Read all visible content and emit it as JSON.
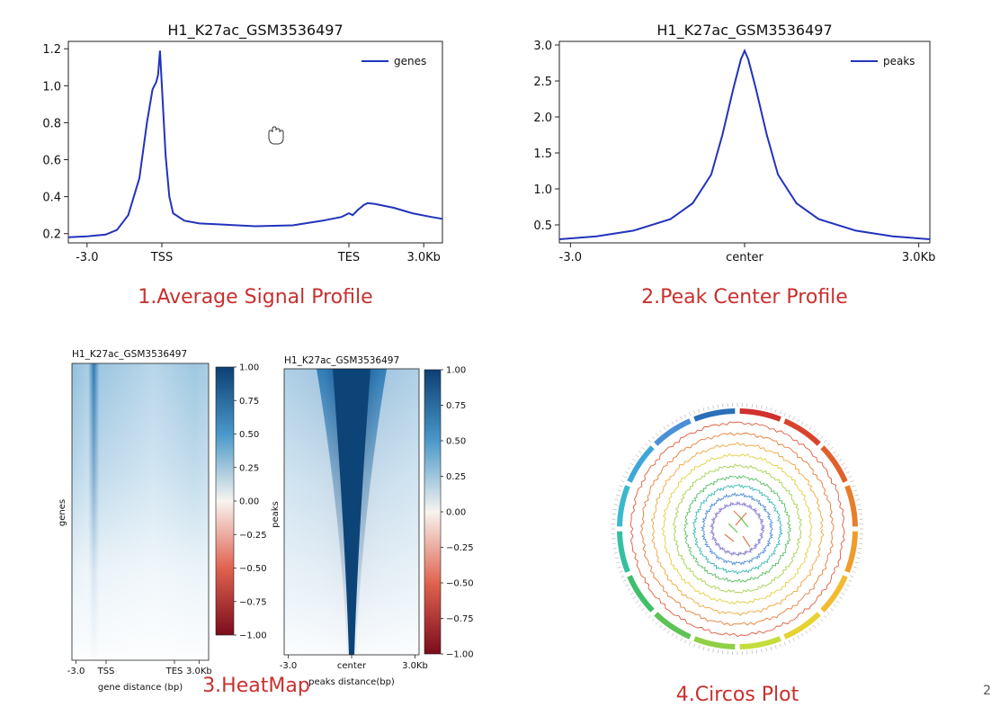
{
  "captions": {
    "c1": "1.Average Signal Profile",
    "c2": "2.Peak Center Profile",
    "c3": "3.HeatMap",
    "c4": "4.Circos Plot"
  },
  "corner_text": "2",
  "colors": {
    "line": "#2233bb",
    "caption": "#c8302e",
    "heat_high": "#0d4a80",
    "heat_low": "#ffffff",
    "heat_neg": "#8b0d1a"
  },
  "chart_data": [
    {
      "type": "line",
      "title": "H1_K27ac_GSM3536497",
      "legend": "genes",
      "legend_position": "top-right",
      "xlabel": "",
      "ylabel": "",
      "x_ticks": [
        "-3.0",
        "TSS",
        "TES",
        "3.0Kb"
      ],
      "y_ticks": [
        "0.2",
        "0.4",
        "0.6",
        "0.8",
        "1.0",
        "1.2"
      ],
      "ylim": [
        0.15,
        1.24
      ],
      "series": [
        {
          "name": "genes",
          "points": [
            [
              0,
              0.18
            ],
            [
              0.05,
              0.185
            ],
            [
              0.1,
              0.195
            ],
            [
              0.13,
              0.22
            ],
            [
              0.16,
              0.3
            ],
            [
              0.19,
              0.5
            ],
            [
              0.21,
              0.8
            ],
            [
              0.225,
              0.98
            ],
            [
              0.235,
              1.02
            ],
            [
              0.24,
              1.06
            ],
            [
              0.245,
              1.19
            ],
            [
              0.25,
              1.0
            ],
            [
              0.26,
              0.62
            ],
            [
              0.27,
              0.4
            ],
            [
              0.28,
              0.31
            ],
            [
              0.31,
              0.27
            ],
            [
              0.35,
              0.255
            ],
            [
              0.4,
              0.25
            ],
            [
              0.5,
              0.24
            ],
            [
              0.6,
              0.245
            ],
            [
              0.68,
              0.27
            ],
            [
              0.73,
              0.29
            ],
            [
              0.75,
              0.31
            ],
            [
              0.76,
              0.3
            ],
            [
              0.775,
              0.33
            ],
            [
              0.79,
              0.355
            ],
            [
              0.8,
              0.365
            ],
            [
              0.82,
              0.36
            ],
            [
              0.87,
              0.34
            ],
            [
              0.92,
              0.31
            ],
            [
              0.97,
              0.29
            ],
            [
              1.0,
              0.28
            ]
          ]
        }
      ]
    },
    {
      "type": "line",
      "title": "H1_K27ac_GSM3536497",
      "legend": "peaks",
      "legend_position": "top-right",
      "xlabel": "",
      "ylabel": "",
      "x_ticks": [
        "-3.0",
        "center",
        "3.0Kb"
      ],
      "y_ticks": [
        "0.5",
        "1.0",
        "1.5",
        "2.0",
        "2.5",
        "3.0"
      ],
      "ylim": [
        0.25,
        3.05
      ],
      "series": [
        {
          "name": "peaks",
          "points": [
            [
              0,
              0.3
            ],
            [
              0.1,
              0.34
            ],
            [
              0.2,
              0.42
            ],
            [
              0.3,
              0.58
            ],
            [
              0.36,
              0.8
            ],
            [
              0.41,
              1.2
            ],
            [
              0.44,
              1.75
            ],
            [
              0.47,
              2.4
            ],
            [
              0.49,
              2.8
            ],
            [
              0.5,
              2.92
            ],
            [
              0.51,
              2.8
            ],
            [
              0.53,
              2.4
            ],
            [
              0.56,
              1.75
            ],
            [
              0.59,
              1.2
            ],
            [
              0.64,
              0.8
            ],
            [
              0.7,
              0.58
            ],
            [
              0.8,
              0.42
            ],
            [
              0.9,
              0.34
            ],
            [
              1.0,
              0.3
            ]
          ]
        }
      ]
    },
    {
      "type": "heatmap",
      "title": "H1_K27ac_GSM3536497",
      "ylabel": "genes",
      "xlabel": "gene distance (bp)",
      "x_ticks": [
        "-3.0",
        "TSS",
        "TES",
        "3.0Kb"
      ],
      "colorbar_ticks": [
        "1.00",
        "0.75",
        "0.50",
        "0.25",
        "0.00",
        "−0.25",
        "−0.50",
        "−0.75",
        "−1.00"
      ]
    },
    {
      "type": "heatmap",
      "title": "H1_K27ac_GSM3536497",
      "ylabel": "peaks",
      "xlabel": "peaks distance(bp)",
      "x_ticks": [
        "-3.0",
        "center",
        "3.0Kb"
      ],
      "colorbar_ticks": [
        "1.00",
        "0.75",
        "0.50",
        "0.25",
        "0.00",
        "−0.25",
        "−0.50",
        "−0.75",
        "−1.00"
      ]
    }
  ]
}
